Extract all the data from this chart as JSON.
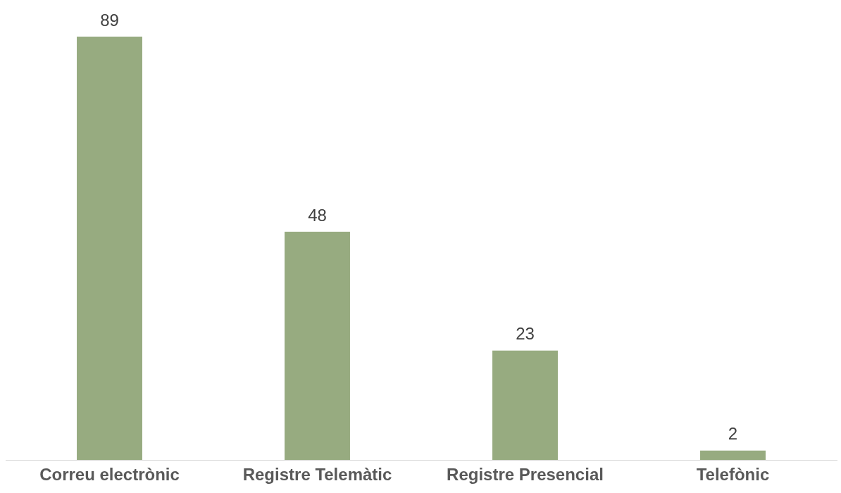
{
  "chart_data": {
    "type": "bar",
    "categories": [
      "Correu electrònic",
      "Registre Telemàtic",
      "Registre Presencial",
      "Telefònic"
    ],
    "values": [
      89,
      48,
      23,
      2
    ],
    "color": "#97ab80",
    "data_labels": true,
    "grid": false,
    "legend": false
  }
}
